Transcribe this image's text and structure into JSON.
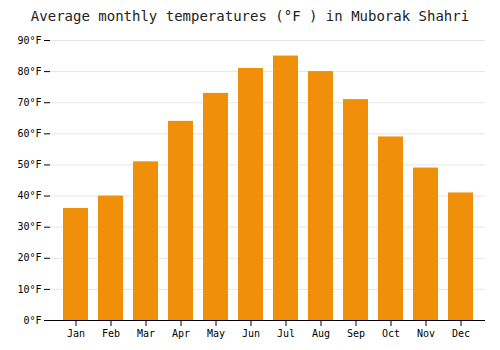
{
  "chart_data": {
    "type": "bar",
    "title": "Average monthly temperatures (°F ) in Muborak Shahri",
    "categories": [
      "Jan",
      "Feb",
      "Mar",
      "Apr",
      "May",
      "Jun",
      "Jul",
      "Aug",
      "Sep",
      "Oct",
      "Nov",
      "Dec"
    ],
    "values": [
      36,
      40,
      51,
      64,
      73,
      81,
      85,
      80,
      71,
      59,
      49,
      41
    ],
    "color": "#F0900A",
    "ylim": [
      0,
      90
    ],
    "yticks": [
      {
        "value": 0,
        "label": "0°F"
      },
      {
        "value": 10,
        "label": "10°F"
      },
      {
        "value": 20,
        "label": "20°F"
      },
      {
        "value": 30,
        "label": "30°F"
      },
      {
        "value": 40,
        "label": "40°F"
      },
      {
        "value": 50,
        "label": "50°F"
      },
      {
        "value": 60,
        "label": "60°F"
      },
      {
        "value": 70,
        "label": "70°F"
      },
      {
        "value": 80,
        "label": "80°F"
      },
      {
        "value": 90,
        "label": "90°F"
      }
    ],
    "grid": true
  }
}
